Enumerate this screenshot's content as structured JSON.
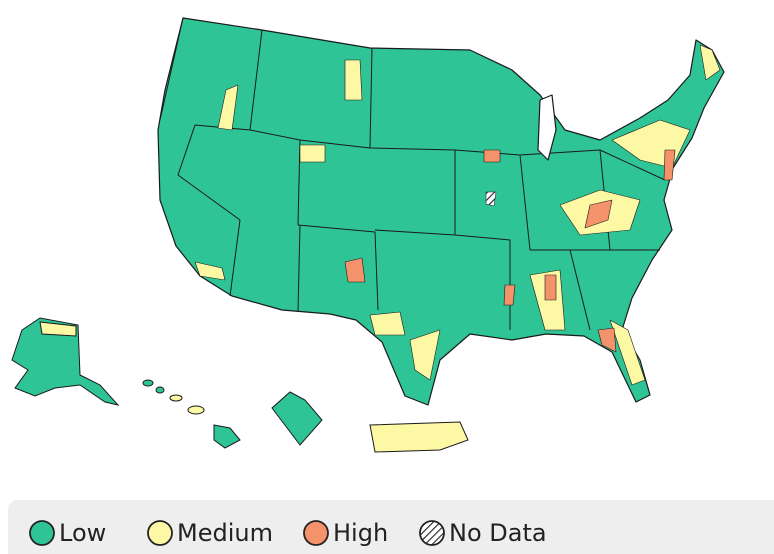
{
  "legend": {
    "items": [
      {
        "label": "Low",
        "color": "#2ec496"
      },
      {
        "label": "Medium",
        "color": "#fcf8a4"
      },
      {
        "label": "High",
        "color": "#f4926b"
      },
      {
        "label": "No Data"
      }
    ]
  }
}
